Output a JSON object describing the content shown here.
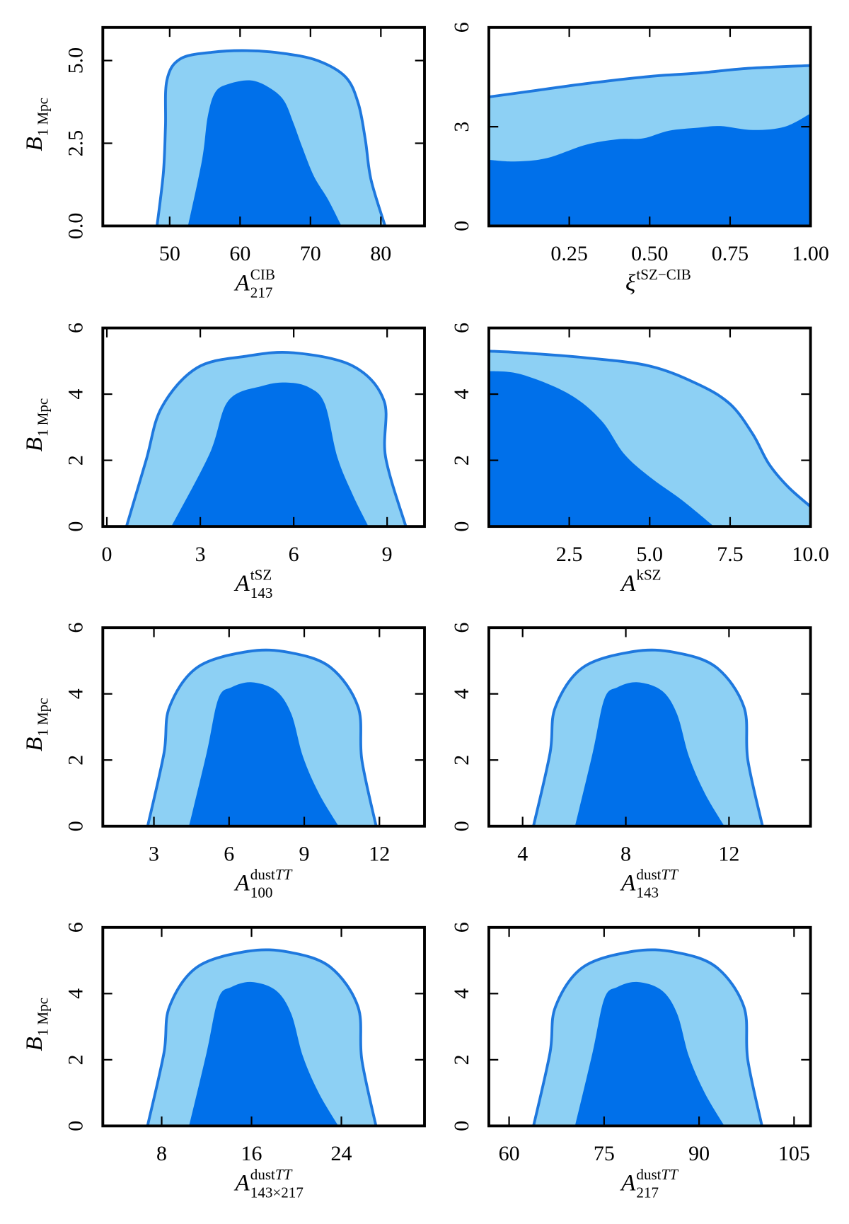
{
  "colors": {
    "inner": "#0070EA",
    "outer": "#8DD0F4",
    "outline": "#1E78DE",
    "frame": "#000000"
  },
  "chart_data": [
    {
      "type": "contour",
      "title": "",
      "xlabel": {
        "base": "A",
        "sup": "CIB",
        "sub": "217"
      },
      "ylabel": {
        "base": "B",
        "sub": "1 Mpc"
      },
      "xlim": [
        40.5,
        86.2
      ],
      "ylim": [
        0,
        6
      ],
      "xticks": [
        50,
        60,
        70,
        80
      ],
      "xtick_labels": [
        "50",
        "60",
        "70",
        "80"
      ],
      "yticks": [
        0,
        2.5,
        5
      ],
      "ytick_labels": [
        "0.0",
        "2.5",
        "5.0"
      ],
      "outer_contour": [
        [
          48.2,
          0
        ],
        [
          49.1,
          1.6
        ],
        [
          49.4,
          3.0
        ],
        [
          49.6,
          4.4
        ],
        [
          51.5,
          5.05
        ],
        [
          56,
          5.25
        ],
        [
          61,
          5.3
        ],
        [
          66,
          5.22
        ],
        [
          71,
          5.0
        ],
        [
          75,
          4.5
        ],
        [
          76.8,
          3.7
        ],
        [
          77.8,
          2.6
        ],
        [
          78.6,
          1.4
        ],
        [
          80.6,
          0
        ]
      ],
      "inner_contour": [
        [
          52.6,
          0
        ],
        [
          54.6,
          2.0
        ],
        [
          55.4,
          3.3
        ],
        [
          56.5,
          4.05
        ],
        [
          58.5,
          4.3
        ],
        [
          61.5,
          4.4
        ],
        [
          64,
          4.2
        ],
        [
          66.2,
          3.8
        ],
        [
          67.6,
          3.1
        ],
        [
          68.8,
          2.4
        ],
        [
          70.5,
          1.5
        ],
        [
          72.5,
          0.8
        ],
        [
          74.4,
          0
        ]
      ]
    },
    {
      "type": "contour",
      "title": "",
      "xlabel": {
        "base": "ξ",
        "sup": "tSZ−CIB",
        "sub": ""
      },
      "ylabel": null,
      "xlim": [
        0,
        1
      ],
      "ylim": [
        0,
        6
      ],
      "xticks": [
        0.25,
        0.5,
        0.75,
        1.0
      ],
      "xtick_labels": [
        "0.25",
        "0.50",
        "0.75",
        "1.00"
      ],
      "yticks": [
        0,
        3,
        6
      ],
      "ytick_labels": [
        "0",
        "3",
        "6"
      ],
      "outer_contour": [
        [
          0,
          3.9
        ],
        [
          0.15,
          4.1
        ],
        [
          0.3,
          4.3
        ],
        [
          0.5,
          4.52
        ],
        [
          0.65,
          4.62
        ],
        [
          0.8,
          4.76
        ],
        [
          1.0,
          4.85
        ]
      ],
      "inner_contour": [
        [
          0,
          2.0
        ],
        [
          0.08,
          1.95
        ],
        [
          0.18,
          2.05
        ],
        [
          0.3,
          2.45
        ],
        [
          0.4,
          2.62
        ],
        [
          0.48,
          2.65
        ],
        [
          0.56,
          2.88
        ],
        [
          0.65,
          2.97
        ],
        [
          0.72,
          3.02
        ],
        [
          0.82,
          2.9
        ],
        [
          0.92,
          3.0
        ],
        [
          1.0,
          3.4
        ]
      ]
    },
    {
      "type": "contour",
      "title": "",
      "xlabel": {
        "base": "A",
        "sup": "tSZ",
        "sub": "143"
      },
      "ylabel": {
        "base": "B",
        "sub": "1 Mpc"
      },
      "xlim": [
        -0.13,
        10.2
      ],
      "ylim": [
        0,
        6
      ],
      "xticks": [
        0,
        3,
        6,
        9
      ],
      "xtick_labels": [
        "0",
        "3",
        "6",
        "9"
      ],
      "yticks": [
        0,
        2,
        4,
        6
      ],
      "ytick_labels": [
        "0",
        "2",
        "4",
        "6"
      ],
      "outer_contour": [
        [
          0.63,
          0
        ],
        [
          1.26,
          2.0
        ],
        [
          1.76,
          3.6
        ],
        [
          2.9,
          4.8
        ],
        [
          4.5,
          5.15
        ],
        [
          6.0,
          5.25
        ],
        [
          7.9,
          4.85
        ],
        [
          8.9,
          3.8
        ],
        [
          8.95,
          2.1
        ],
        [
          9.6,
          0
        ]
      ],
      "inner_contour": [
        [
          2.07,
          0
        ],
        [
          3.3,
          2.2
        ],
        [
          3.9,
          3.8
        ],
        [
          5.0,
          4.25
        ],
        [
          5.8,
          4.35
        ],
        [
          6.5,
          4.2
        ],
        [
          7.0,
          3.7
        ],
        [
          7.4,
          2.1
        ],
        [
          7.9,
          0.95
        ],
        [
          8.4,
          0
        ]
      ]
    },
    {
      "type": "contour",
      "title": "",
      "xlabel": {
        "base": "A",
        "sup": "kSZ",
        "sub": ""
      },
      "ylabel": null,
      "xlim": [
        0,
        10
      ],
      "ylim": [
        0,
        6
      ],
      "xticks": [
        2.5,
        5.0,
        7.5,
        10.0
      ],
      "xtick_labels": [
        "2.5",
        "5.0",
        "7.5",
        "10.0"
      ],
      "yticks": [
        0,
        2,
        4,
        6
      ],
      "ytick_labels": [
        "0",
        "2",
        "4",
        "6"
      ],
      "outer_contour": [
        [
          0,
          5.3
        ],
        [
          1,
          5.25
        ],
        [
          3,
          5.1
        ],
        [
          5,
          4.85
        ],
        [
          6.5,
          4.3
        ],
        [
          7.5,
          3.7
        ],
        [
          8.2,
          2.8
        ],
        [
          8.7,
          1.9
        ],
        [
          9.3,
          1.2
        ],
        [
          10,
          0.6
        ]
      ],
      "inner_contour": [
        [
          0,
          4.7
        ],
        [
          1,
          4.6
        ],
        [
          2.5,
          4.0
        ],
        [
          3.5,
          3.2
        ],
        [
          4.2,
          2.2
        ],
        [
          5,
          1.5
        ],
        [
          6,
          0.8
        ],
        [
          7.0,
          0
        ]
      ]
    },
    {
      "type": "contour",
      "title": "",
      "xlabel": {
        "base": "A",
        "sup": "dustTT",
        "sub": "100"
      },
      "ylabel": {
        "base": "B",
        "sub": "1 Mpc"
      },
      "xlim": [
        0.96,
        13.8
      ],
      "ylim": [
        0,
        6
      ],
      "xticks": [
        3,
        6,
        9,
        12
      ],
      "xtick_labels": [
        "3",
        "6",
        "9",
        "12"
      ],
      "yticks": [
        0,
        2,
        4,
        6
      ],
      "ytick_labels": [
        "0",
        "2",
        "4",
        "6"
      ],
      "outer_contour": [
        [
          2.75,
          0
        ],
        [
          3.4,
          2.2
        ],
        [
          3.62,
          3.6
        ],
        [
          4.73,
          4.8
        ],
        [
          6.76,
          5.28
        ],
        [
          8.41,
          5.25
        ],
        [
          10.05,
          4.8
        ],
        [
          11.15,
          3.6
        ],
        [
          11.3,
          2.0
        ],
        [
          11.87,
          0
        ]
      ],
      "inner_contour": [
        [
          4.4,
          0
        ],
        [
          5.1,
          2.2
        ],
        [
          5.57,
          3.85
        ],
        [
          6.1,
          4.2
        ],
        [
          6.91,
          4.35
        ],
        [
          7.86,
          4.1
        ],
        [
          8.48,
          3.4
        ],
        [
          8.95,
          2.1
        ],
        [
          9.58,
          1.0
        ],
        [
          10.37,
          0
        ]
      ]
    },
    {
      "type": "contour",
      "title": "",
      "xlabel": {
        "base": "A",
        "sup": "dustTT",
        "sub": "143"
      },
      "ylabel": null,
      "xlim": [
        2.69,
        15.16
      ],
      "ylim": [
        0,
        6
      ],
      "xticks": [
        4,
        8,
        12
      ],
      "xtick_labels": [
        "4",
        "8",
        "12"
      ],
      "yticks": [
        0,
        2,
        4,
        6
      ],
      "ytick_labels": [
        "0",
        "2",
        "4",
        "6"
      ],
      "outer_contour": [
        [
          4.42,
          0
        ],
        [
          5.06,
          2.2
        ],
        [
          5.27,
          3.6
        ],
        [
          6.34,
          4.8
        ],
        [
          8.31,
          5.28
        ],
        [
          9.92,
          5.25
        ],
        [
          11.51,
          4.8
        ],
        [
          12.58,
          3.6
        ],
        [
          12.73,
          2.0
        ],
        [
          13.3,
          0
        ]
      ],
      "inner_contour": [
        [
          6.03,
          0
        ],
        [
          6.71,
          2.2
        ],
        [
          7.17,
          3.85
        ],
        [
          7.68,
          4.2
        ],
        [
          8.46,
          4.35
        ],
        [
          9.39,
          4.1
        ],
        [
          9.98,
          3.4
        ],
        [
          10.45,
          2.1
        ],
        [
          11.06,
          1.0
        ],
        [
          11.82,
          0
        ]
      ]
    },
    {
      "type": "contour",
      "title": "",
      "xlabel": {
        "base": "A",
        "sup": "dustTT",
        "sub": "143×217"
      },
      "ylabel": {
        "base": "B",
        "sub": "1 Mpc"
      },
      "xlim": [
        2.76,
        31.4
      ],
      "ylim": [
        0,
        6
      ],
      "xticks": [
        8,
        16,
        24
      ],
      "xtick_labels": [
        "8",
        "16",
        "24"
      ],
      "yticks": [
        0,
        2,
        4,
        6
      ],
      "ytick_labels": [
        "0",
        "2",
        "4",
        "6"
      ],
      "outer_contour": [
        [
          6.74,
          0
        ],
        [
          8.2,
          2.2
        ],
        [
          8.69,
          3.6
        ],
        [
          11.15,
          4.8
        ],
        [
          15.68,
          5.28
        ],
        [
          19.38,
          5.25
        ],
        [
          23.02,
          4.8
        ],
        [
          25.48,
          3.6
        ],
        [
          25.82,
          2.0
        ],
        [
          27.08,
          0
        ]
      ],
      "inner_contour": [
        [
          10.44,
          0
        ],
        [
          11.99,
          2.2
        ],
        [
          13.05,
          3.85
        ],
        [
          14.22,
          4.2
        ],
        [
          16.02,
          4.35
        ],
        [
          18.15,
          4.1
        ],
        [
          19.52,
          3.4
        ],
        [
          20.58,
          2.1
        ],
        [
          21.98,
          1.0
        ],
        [
          23.73,
          0
        ]
      ]
    },
    {
      "type": "contour",
      "title": "",
      "xlabel": {
        "base": "A",
        "sup": "dustTT",
        "sub": "217"
      },
      "ylabel": null,
      "xlim": [
        56.8,
        107.6
      ],
      "ylim": [
        0,
        6
      ],
      "xticks": [
        60,
        75,
        90,
        105
      ],
      "xtick_labels": [
        "60",
        "75",
        "90",
        "105"
      ],
      "yticks": [
        0,
        2,
        4,
        6
      ],
      "ytick_labels": [
        "0",
        "2",
        "4",
        "6"
      ],
      "outer_contour": [
        [
          63.86,
          0
        ],
        [
          66.45,
          2.2
        ],
        [
          67.32,
          3.6
        ],
        [
          71.68,
          4.8
        ],
        [
          79.71,
          5.28
        ],
        [
          86.26,
          5.25
        ],
        [
          92.72,
          4.8
        ],
        [
          97.08,
          3.6
        ],
        [
          97.69,
          2.0
        ],
        [
          99.93,
          0
        ]
      ],
      "inner_contour": [
        [
          70.41,
          0
        ],
        [
          73.16,
          2.2
        ],
        [
          75.04,
          3.85
        ],
        [
          77.12,
          4.2
        ],
        [
          80.32,
          4.35
        ],
        [
          84.08,
          4.1
        ],
        [
          86.52,
          3.4
        ],
        [
          88.4,
          2.1
        ],
        [
          90.89,
          1.0
        ],
        [
          93.99,
          0
        ]
      ]
    }
  ]
}
